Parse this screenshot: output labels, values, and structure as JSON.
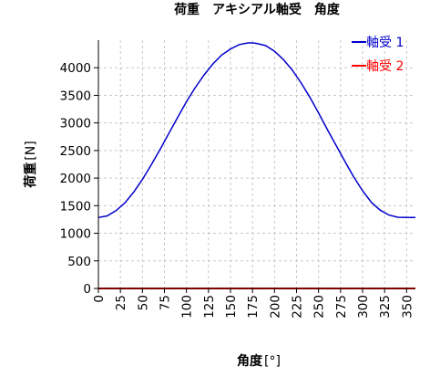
{
  "chart_data": {
    "type": "line",
    "title": "荷重　アキシアル軸受　角度",
    "xlabel_main": "角度",
    "xlabel_unit": "[°]",
    "ylabel_main": "荷重",
    "ylabel_unit": "[N]",
    "xlim": [
      0,
      360
    ],
    "ylim": [
      0,
      4500
    ],
    "xticks": [
      0,
      25,
      50,
      75,
      100,
      125,
      150,
      175,
      200,
      225,
      250,
      275,
      300,
      325,
      350
    ],
    "yticks": [
      0,
      500,
      1000,
      1500,
      2000,
      2500,
      3000,
      3500,
      4000
    ],
    "grid": true,
    "legend_position": "top-right",
    "series": [
      {
        "name": "軸受 1",
        "color": "#0000cc",
        "x": [
          0,
          10,
          20,
          30,
          40,
          50,
          60,
          70,
          80,
          90,
          100,
          110,
          120,
          130,
          140,
          150,
          160,
          170,
          175,
          180,
          190,
          200,
          210,
          220,
          230,
          240,
          250,
          260,
          270,
          280,
          290,
          300,
          310,
          320,
          330,
          340,
          350,
          355,
          360
        ],
        "y": [
          1285,
          1315,
          1410,
          1550,
          1745,
          1975,
          2240,
          2520,
          2810,
          3100,
          3385,
          3640,
          3870,
          4070,
          4230,
          4340,
          4420,
          4450,
          4450,
          4440,
          4400,
          4300,
          4150,
          3960,
          3730,
          3470,
          3180,
          2880,
          2590,
          2300,
          2020,
          1770,
          1560,
          1420,
          1330,
          1290,
          1285,
          1285,
          1285
        ]
      },
      {
        "name": "軸受 2",
        "color": "#ff0000",
        "x": [
          0,
          360
        ],
        "y": [
          0,
          0
        ]
      }
    ]
  }
}
